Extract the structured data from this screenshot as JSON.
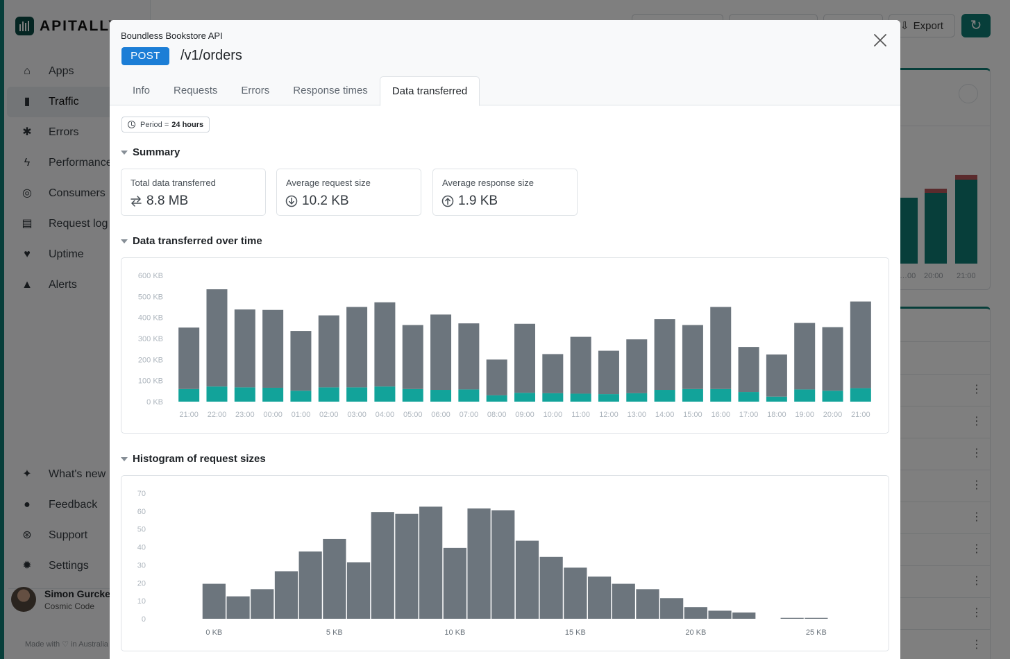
{
  "app": {
    "brand": "APITALLY",
    "nav": [
      {
        "label": "Apps",
        "icon": "home-icon",
        "glyph": "⌂"
      },
      {
        "label": "Traffic",
        "icon": "bar-chart-icon",
        "glyph": "▮"
      },
      {
        "label": "Errors",
        "icon": "bug-icon",
        "glyph": "✱"
      },
      {
        "label": "Performance",
        "icon": "lightning-icon",
        "glyph": "ϟ"
      },
      {
        "label": "Consumers",
        "icon": "fingerprint-icon",
        "glyph": "◎"
      },
      {
        "label": "Request log",
        "icon": "scroll-icon",
        "glyph": "▤"
      },
      {
        "label": "Uptime",
        "icon": "heart-pulse-icon",
        "glyph": "♥"
      },
      {
        "label": "Alerts",
        "icon": "bell-icon",
        "glyph": "▲"
      }
    ],
    "nav_bottom": [
      {
        "label": "What's new",
        "icon": "sparkles-icon",
        "glyph": "✦"
      },
      {
        "label": "Feedback",
        "icon": "chat-icon",
        "glyph": "●"
      },
      {
        "label": "Support",
        "icon": "lifebuoy-icon",
        "glyph": "⊛"
      },
      {
        "label": "Settings",
        "icon": "gear-icon",
        "glyph": "✹"
      }
    ],
    "user": {
      "name": "Simon Gurcke",
      "org": "Cosmic Code"
    },
    "made_with": "Made with ♡ in Australia",
    "export_label": "Export",
    "bg_chart_ticks": [
      "…00",
      "20:00",
      "21:00"
    ],
    "accent": "#0e7d74"
  },
  "modal": {
    "app_name": "Boundless Bookstore API",
    "method": "POST",
    "path": "/v1/orders",
    "tabs": [
      "Info",
      "Requests",
      "Errors",
      "Response times",
      "Data transferred"
    ],
    "active_tab": "Data transferred",
    "period_label": "Period = ",
    "period_value": "24 hours",
    "summary_title": "Summary",
    "stats": [
      {
        "label": "Total data transferred",
        "value": "8.8 MB",
        "icon": "arrows-exchange-icon"
      },
      {
        "label": "Average request size",
        "value": "10.2 KB",
        "icon": "circle-arrow-down-icon"
      },
      {
        "label": "Average response size",
        "value": "1.9 KB",
        "icon": "circle-arrow-up-icon"
      }
    ],
    "over_time_title": "Data transferred over time",
    "histogram_title": "Histogram of request sizes"
  },
  "chart_data": [
    {
      "type": "bar",
      "stacked": true,
      "categories": [
        "21:00",
        "22:00",
        "23:00",
        "00:00",
        "01:00",
        "02:00",
        "03:00",
        "04:00",
        "05:00",
        "06:00",
        "07:00",
        "08:00",
        "09:00",
        "10:00",
        "11:00",
        "12:00",
        "13:00",
        "14:00",
        "15:00",
        "16:00",
        "17:00",
        "18:00",
        "19:00",
        "20:00",
        "21:00"
      ],
      "series": [
        {
          "color": "#12a39a",
          "values": [
            60,
            72,
            68,
            66,
            52,
            68,
            68,
            72,
            60,
            56,
            58,
            30,
            42,
            40,
            38,
            36,
            40,
            56,
            60,
            60,
            46,
            24,
            58,
            52,
            64
          ]
        },
        {
          "color": "#6c757d",
          "values": [
            292,
            462,
            370,
            370,
            284,
            342,
            382,
            400,
            304,
            358,
            314,
            170,
            328,
            186,
            270,
            206,
            256,
            336,
            304,
            390,
            214,
            200,
            316,
            302,
            412
          ]
        }
      ],
      "yticks": [
        "0 KB",
        "100 KB",
        "200 KB",
        "300 KB",
        "400 KB",
        "500 KB",
        "600 KB"
      ],
      "ylim": [
        0,
        600
      ]
    },
    {
      "type": "bar",
      "histogram": true,
      "bins_kb": [
        0,
        1,
        2,
        3,
        4,
        5,
        6,
        7,
        8,
        9,
        10,
        11,
        12,
        13,
        14,
        15,
        16,
        17,
        18,
        19,
        20,
        21,
        22,
        23,
        24,
        25
      ],
      "values": [
        19.5,
        12.5,
        16.5,
        26.5,
        37.5,
        44.5,
        31.5,
        59.5,
        58.5,
        62.5,
        39.5,
        61.5,
        60.5,
        43.5,
        34.5,
        28.5,
        23.5,
        19.5,
        16.5,
        11.5,
        6.5,
        4.5,
        3.5,
        0,
        0.5,
        0.5
      ],
      "color": "#6c757d",
      "yticks": [
        "0",
        "10",
        "20",
        "30",
        "40",
        "50",
        "60",
        "70"
      ],
      "ylim": [
        0,
        70
      ],
      "xticks": [
        {
          "at": 0,
          "label": "0 KB"
        },
        {
          "at": 5,
          "label": "5 KB"
        },
        {
          "at": 10,
          "label": "10 KB"
        },
        {
          "at": 15,
          "label": "15 KB"
        },
        {
          "at": 20,
          "label": "20 KB"
        },
        {
          "at": 25,
          "label": "25 KB"
        }
      ]
    }
  ]
}
